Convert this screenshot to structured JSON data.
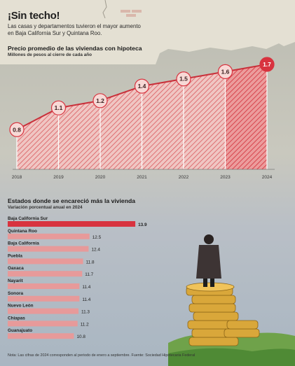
{
  "header": {
    "title": "¡Sin techo!",
    "subtitle": "Las casas y departamentos tuvieron el mayor aumento en Baja California Sur y Quintana Roo."
  },
  "chart_data": [
    {
      "type": "area",
      "title": "Precio promedio de las viviendas con hipoteca",
      "subtitle": "Millones de pesos al cierre de cada año",
      "categories": [
        "2018",
        "2019",
        "2020",
        "2021",
        "2022",
        "2023",
        "2024"
      ],
      "series": [
        {
          "values": [
            0.8,
            1.1,
            1.2,
            1.4,
            1.5,
            1.6,
            1.7
          ]
        }
      ],
      "ylim": [
        0,
        1.8
      ],
      "grid": false
    },
    {
      "type": "bar",
      "orientation": "horizontal",
      "title": "Estados donde se encareció más la vivienda",
      "subtitle": "Variación porcentual anual en 2024",
      "categories": [
        "Baja California Sur",
        "Quintana Roo",
        "Baja California",
        "Puebla",
        "Oaxaca",
        "Nayarit",
        "Sonora",
        "Nuevo León",
        "Chiapas",
        "Guanajuato"
      ],
      "values": [
        13.9,
        12.5,
        12.4,
        11.8,
        11.7,
        11.4,
        11.4,
        11.3,
        11.2,
        10.8
      ],
      "highlight_color": "#d8333f",
      "bar_color": "#e79a9a"
    }
  ],
  "footer": {
    "note": "Nota: Las cifras de 2024 corresponden al periodo de enero a septiembre. Fuente: Sociedad Hipotecaria Federal"
  }
}
